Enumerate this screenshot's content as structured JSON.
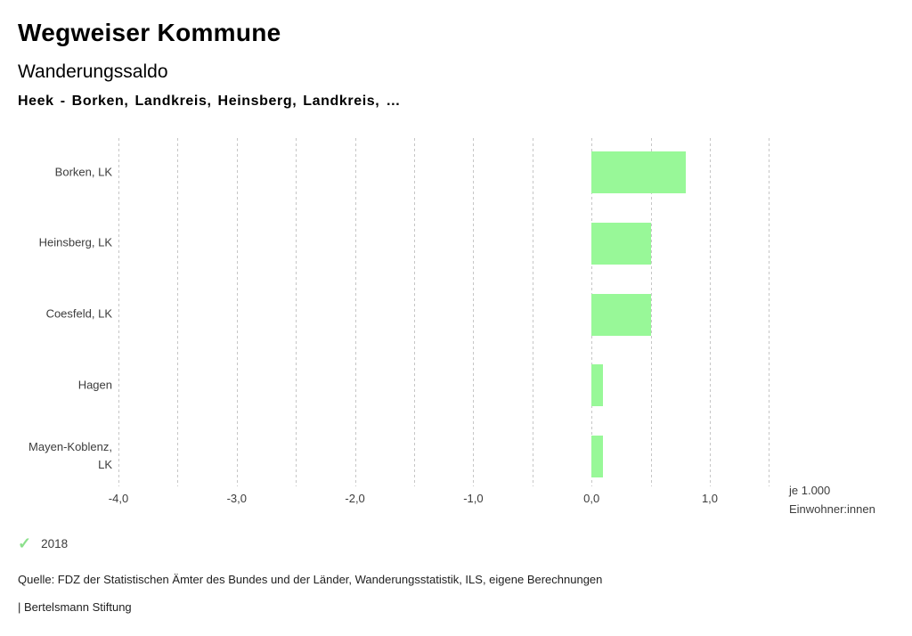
{
  "header": {
    "title": "Wegweiser Kommune",
    "subtitle": "Wanderungssaldo",
    "comparison": "Heek - Borken, Landkreis, Heinsberg, Landkreis, …"
  },
  "legend": {
    "label": "2018",
    "check_color": "#8ce08c"
  },
  "footer": {
    "source": "Quelle: FDZ der Statistischen Ämter des Bundes und der Länder, Wanderungsstatistik, ILS, eigene Berechnungen",
    "branding": "| Bertelsmann Stiftung"
  },
  "chart_data": {
    "type": "bar",
    "orientation": "horizontal",
    "title": "Wanderungssaldo",
    "categories": [
      "Borken, LK",
      "Heinsberg, LK",
      "Coesfeld, LK",
      "Hagen",
      "Mayen-Koblenz, LK"
    ],
    "series": [
      {
        "name": "2018",
        "values": [
          0.8,
          0.5,
          0.5,
          0.1,
          0.1
        ]
      }
    ],
    "xlim": [
      -4.0,
      1.5
    ],
    "gridline_step": 0.5,
    "x_ticks": [
      {
        "value": -4,
        "label": "-4,0"
      },
      {
        "value": -3,
        "label": "-3,0"
      },
      {
        "value": -2,
        "label": "-2,0"
      },
      {
        "value": -1,
        "label": "-1,0"
      },
      {
        "value": 0,
        "label": "0,0"
      },
      {
        "value": 1,
        "label": "1,0"
      }
    ],
    "unit_label": [
      "je 1.000",
      "Einwohner:innen"
    ],
    "bar_color": "#98f898",
    "grid": true,
    "legend_position": "bottom-left",
    "xlabel": "je 1.000 Einwohner:innen",
    "ylabel": ""
  }
}
